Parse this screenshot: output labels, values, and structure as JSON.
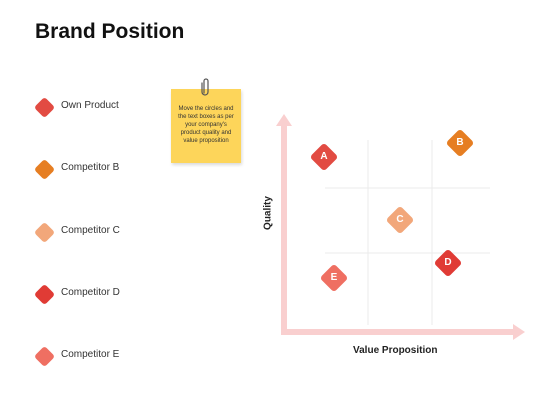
{
  "title": "Brand Position",
  "colors": {
    "own": "#e24b42",
    "b": "#e67e22",
    "c": "#f2a77a",
    "d": "#e03b35",
    "e": "#ef6f62",
    "arrow": "#f9cfcf",
    "grid": "#ebebeb",
    "note": "#fdd55a"
  },
  "legend": [
    {
      "label": "Own Product",
      "color": "#e24b42"
    },
    {
      "label": "Competitor B",
      "color": "#e67e22"
    },
    {
      "label": "Competitor C",
      "color": "#f2a77a"
    },
    {
      "label": "Competitor D",
      "color": "#e03b35"
    },
    {
      "label": "Competitor E",
      "color": "#ef6f62"
    }
  ],
  "note": {
    "text": "Move the circles and the text boxes as per your company's product quality and value proposition",
    "icon": "paperclip-icon"
  },
  "matrix": {
    "xlabel": "Value Proposition",
    "ylabel": "Quality",
    "points": [
      {
        "letter": "A",
        "value": 0.12,
        "quality": 0.85,
        "color": "#e24b42"
      },
      {
        "letter": "B",
        "value": 0.8,
        "quality": 0.93,
        "color": "#e67e22"
      },
      {
        "letter": "C",
        "value": 0.5,
        "quality": 0.5,
        "color": "#f2a77a"
      },
      {
        "letter": "D",
        "value": 0.74,
        "quality": 0.26,
        "color": "#e03b35"
      },
      {
        "letter": "E",
        "value": 0.17,
        "quality": 0.18,
        "color": "#ef6f62"
      }
    ]
  }
}
